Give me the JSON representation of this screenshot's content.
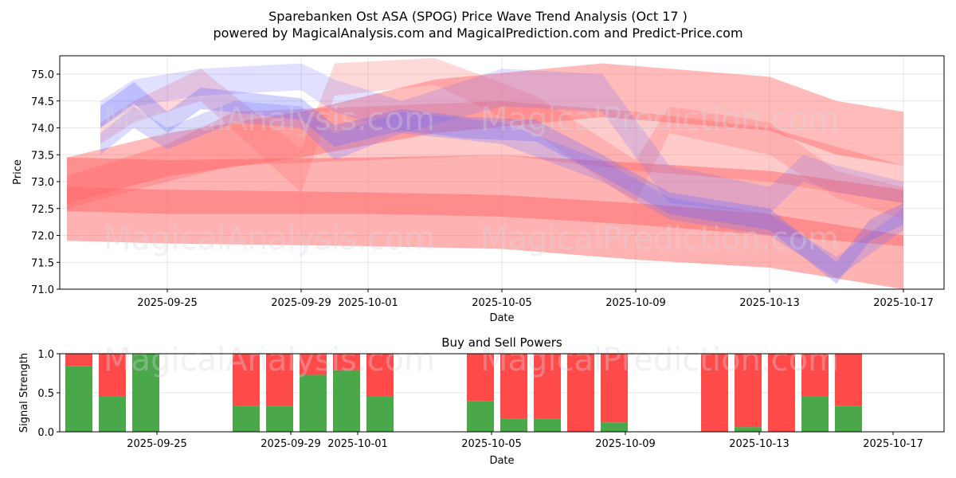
{
  "title_line1": "Sparebanken Ost ASA (SPOG) Price Wave Trend Analysis (Oct 17 )",
  "title_line2": "powered by MagicalAnalysis.com and MagicalPrediction.com and Predict-Price.com",
  "watermarks": [
    "MagicalAnalysis.com",
    "MagicalPrediction.com"
  ],
  "colors": {
    "buy": "#4aa84a",
    "sell": "#ff4a4a",
    "red_band": "#ff6666",
    "blue_band": "#6a6aff"
  },
  "chart_data": [
    {
      "type": "area",
      "title": "Price Wave Trend Analysis",
      "xlabel": "Date",
      "ylabel": "Price",
      "ylim": [
        71.0,
        75.35
      ],
      "xlim": [
        "2025-09-22",
        "2025-10-18"
      ],
      "yticks": [
        "71.0",
        "71.5",
        "72.0",
        "72.5",
        "73.0",
        "73.5",
        "74.0",
        "74.5",
        "75.0"
      ],
      "xticks": [
        "2025-09-25",
        "2025-09-29",
        "2025-10-01",
        "2025-10-05",
        "2025-10-09",
        "2025-10-13",
        "2025-10-17"
      ],
      "grid": true,
      "series": [
        {
          "name": "red-wide-low",
          "color": "red",
          "opacity": 0.5,
          "x": [
            "2025-09-22",
            "2025-09-25",
            "2025-10-01",
            "2025-10-05",
            "2025-10-09",
            "2025-10-13",
            "2025-10-17"
          ],
          "upper": [
            73.45,
            73.4,
            73.45,
            73.5,
            73.35,
            73.2,
            72.85
          ],
          "lower": [
            71.9,
            71.85,
            71.8,
            71.75,
            71.55,
            71.4,
            71.0
          ]
        },
        {
          "name": "red-core-low",
          "color": "red",
          "opacity": 0.5,
          "x": [
            "2025-09-22",
            "2025-09-25",
            "2025-10-01",
            "2025-10-05",
            "2025-10-09",
            "2025-10-13",
            "2025-10-17"
          ],
          "upper": [
            72.9,
            72.85,
            72.8,
            72.75,
            72.6,
            72.4,
            72.0
          ],
          "lower": [
            72.45,
            72.4,
            72.4,
            72.35,
            72.2,
            72.0,
            71.8
          ]
        },
        {
          "name": "red-upper-wide",
          "color": "red",
          "opacity": 0.45,
          "x": [
            "2025-09-22",
            "2025-09-25",
            "2025-09-29",
            "2025-10-03",
            "2025-10-08",
            "2025-10-13",
            "2025-10-15",
            "2025-10-17"
          ],
          "upper": [
            73.45,
            73.9,
            74.3,
            74.9,
            75.2,
            74.95,
            74.5,
            74.3
          ],
          "lower": [
            72.6,
            73.1,
            73.45,
            73.9,
            74.2,
            73.95,
            73.5,
            73.3
          ]
        },
        {
          "name": "red-rising",
          "color": "red",
          "opacity": 0.35,
          "x": [
            "2025-09-22",
            "2025-09-25",
            "2025-09-27",
            "2025-10-01",
            "2025-10-05",
            "2025-10-09",
            "2025-10-13",
            "2025-10-17"
          ],
          "upper": [
            73.1,
            73.7,
            74.3,
            74.4,
            74.5,
            74.3,
            74.0,
            73.3
          ],
          "lower": [
            72.5,
            73.0,
            73.3,
            73.4,
            73.5,
            73.2,
            73.0,
            72.6
          ]
        },
        {
          "name": "pink-zigzag",
          "color": "red",
          "opacity": 0.25,
          "x": [
            "2025-09-23",
            "2025-09-24",
            "2025-09-26",
            "2025-09-29",
            "2025-09-30",
            "2025-10-03",
            "2025-10-06",
            "2025-10-09",
            "2025-10-10",
            "2025-10-13",
            "2025-10-15",
            "2025-10-17"
          ],
          "upper": [
            74.1,
            74.5,
            75.1,
            73.6,
            75.2,
            75.3,
            74.6,
            73.4,
            74.4,
            74.1,
            73.2,
            72.9
          ],
          "lower": [
            73.7,
            74.1,
            74.5,
            72.8,
            74.6,
            74.8,
            73.9,
            72.6,
            73.9,
            73.5,
            72.7,
            72.3
          ]
        },
        {
          "name": "blue-wave-1",
          "color": "blue",
          "opacity": 0.3,
          "x": [
            "2025-09-23",
            "2025-09-24",
            "2025-09-25",
            "2025-09-26",
            "2025-09-29",
            "2025-09-30",
            "2025-10-02",
            "2025-10-04",
            "2025-10-06",
            "2025-10-08",
            "2025-10-10",
            "2025-10-13",
            "2025-10-15",
            "2025-10-16",
            "2025-10-17"
          ],
          "upper": [
            74.4,
            74.85,
            74.3,
            74.75,
            74.55,
            74.05,
            74.35,
            74.2,
            74.15,
            73.5,
            72.8,
            72.5,
            71.5,
            72.3,
            72.6
          ],
          "lower": [
            74.0,
            74.45,
            73.9,
            74.35,
            74.15,
            73.65,
            73.95,
            73.8,
            73.75,
            73.1,
            72.4,
            72.1,
            71.1,
            71.9,
            72.2
          ]
        },
        {
          "name": "blue-wave-2",
          "color": "blue",
          "opacity": 0.2,
          "x": [
            "2025-09-23",
            "2025-09-24",
            "2025-09-26",
            "2025-09-29",
            "2025-09-30",
            "2025-10-02",
            "2025-10-05",
            "2025-10-08",
            "2025-10-10",
            "2025-10-13",
            "2025-10-14",
            "2025-10-15",
            "2025-10-17"
          ],
          "upper": [
            74.5,
            74.9,
            75.1,
            75.2,
            74.9,
            74.5,
            75.1,
            75.0,
            73.3,
            72.9,
            73.5,
            73.3,
            73.0
          ],
          "lower": [
            74.0,
            74.4,
            74.6,
            74.7,
            74.3,
            73.9,
            74.4,
            74.3,
            72.6,
            72.4,
            73.0,
            72.8,
            72.6
          ]
        },
        {
          "name": "purple-wave",
          "color": "blue",
          "opacity": 0.25,
          "x": [
            "2025-09-23",
            "2025-09-24",
            "2025-09-25",
            "2025-09-27",
            "2025-09-29",
            "2025-09-30",
            "2025-10-02",
            "2025-10-05",
            "2025-10-08",
            "2025-10-10",
            "2025-10-13",
            "2025-10-15",
            "2025-10-17"
          ],
          "upper": [
            73.9,
            74.4,
            74.0,
            74.5,
            74.4,
            73.9,
            74.3,
            74.1,
            73.4,
            72.7,
            72.4,
            71.6,
            72.5
          ],
          "lower": [
            73.5,
            74.0,
            73.6,
            74.1,
            74.0,
            73.4,
            73.9,
            73.7,
            73.0,
            72.3,
            72.0,
            71.2,
            72.1
          ]
        }
      ]
    },
    {
      "type": "bar",
      "title": "Buy and Sell Powers",
      "xlabel": "Date",
      "ylabel": "Signal Strength",
      "ylim": [
        0.0,
        1.0
      ],
      "yticks": [
        "0.0",
        "0.5",
        "1.0"
      ],
      "xticks": [
        "2025-09-25",
        "2025-09-29",
        "2025-10-01",
        "2025-10-05",
        "2025-10-09",
        "2025-10-13",
        "2025-10-17"
      ],
      "grid": true,
      "stacked": true,
      "categories": [
        "2025-09-24",
        "2025-09-25",
        "2025-09-26",
        "2025-09-29",
        "2025-09-30",
        "2025-10-01",
        "2025-10-02",
        "2025-10-03",
        "2025-10-06",
        "2025-10-07",
        "2025-10-08",
        "2025-10-09",
        "2025-10-10",
        "2025-10-13",
        "2025-10-14",
        "2025-10-15",
        "2025-10-16",
        "2025-10-17"
      ],
      "series": [
        {
          "name": "Buy",
          "color": "green",
          "values": [
            0.84,
            0.45,
            1.0,
            0.33,
            0.33,
            0.73,
            0.79,
            0.45,
            0.39,
            0.17,
            0.17,
            0.0,
            0.12,
            0.0,
            0.06,
            0.0,
            0.45,
            0.33
          ]
        },
        {
          "name": "Sell",
          "color": "red",
          "values": [
            0.16,
            0.55,
            0.0,
            0.67,
            0.67,
            0.27,
            0.21,
            0.55,
            0.61,
            0.83,
            0.83,
            1.0,
            0.88,
            1.0,
            0.94,
            1.0,
            0.55,
            0.67
          ]
        }
      ]
    }
  ]
}
